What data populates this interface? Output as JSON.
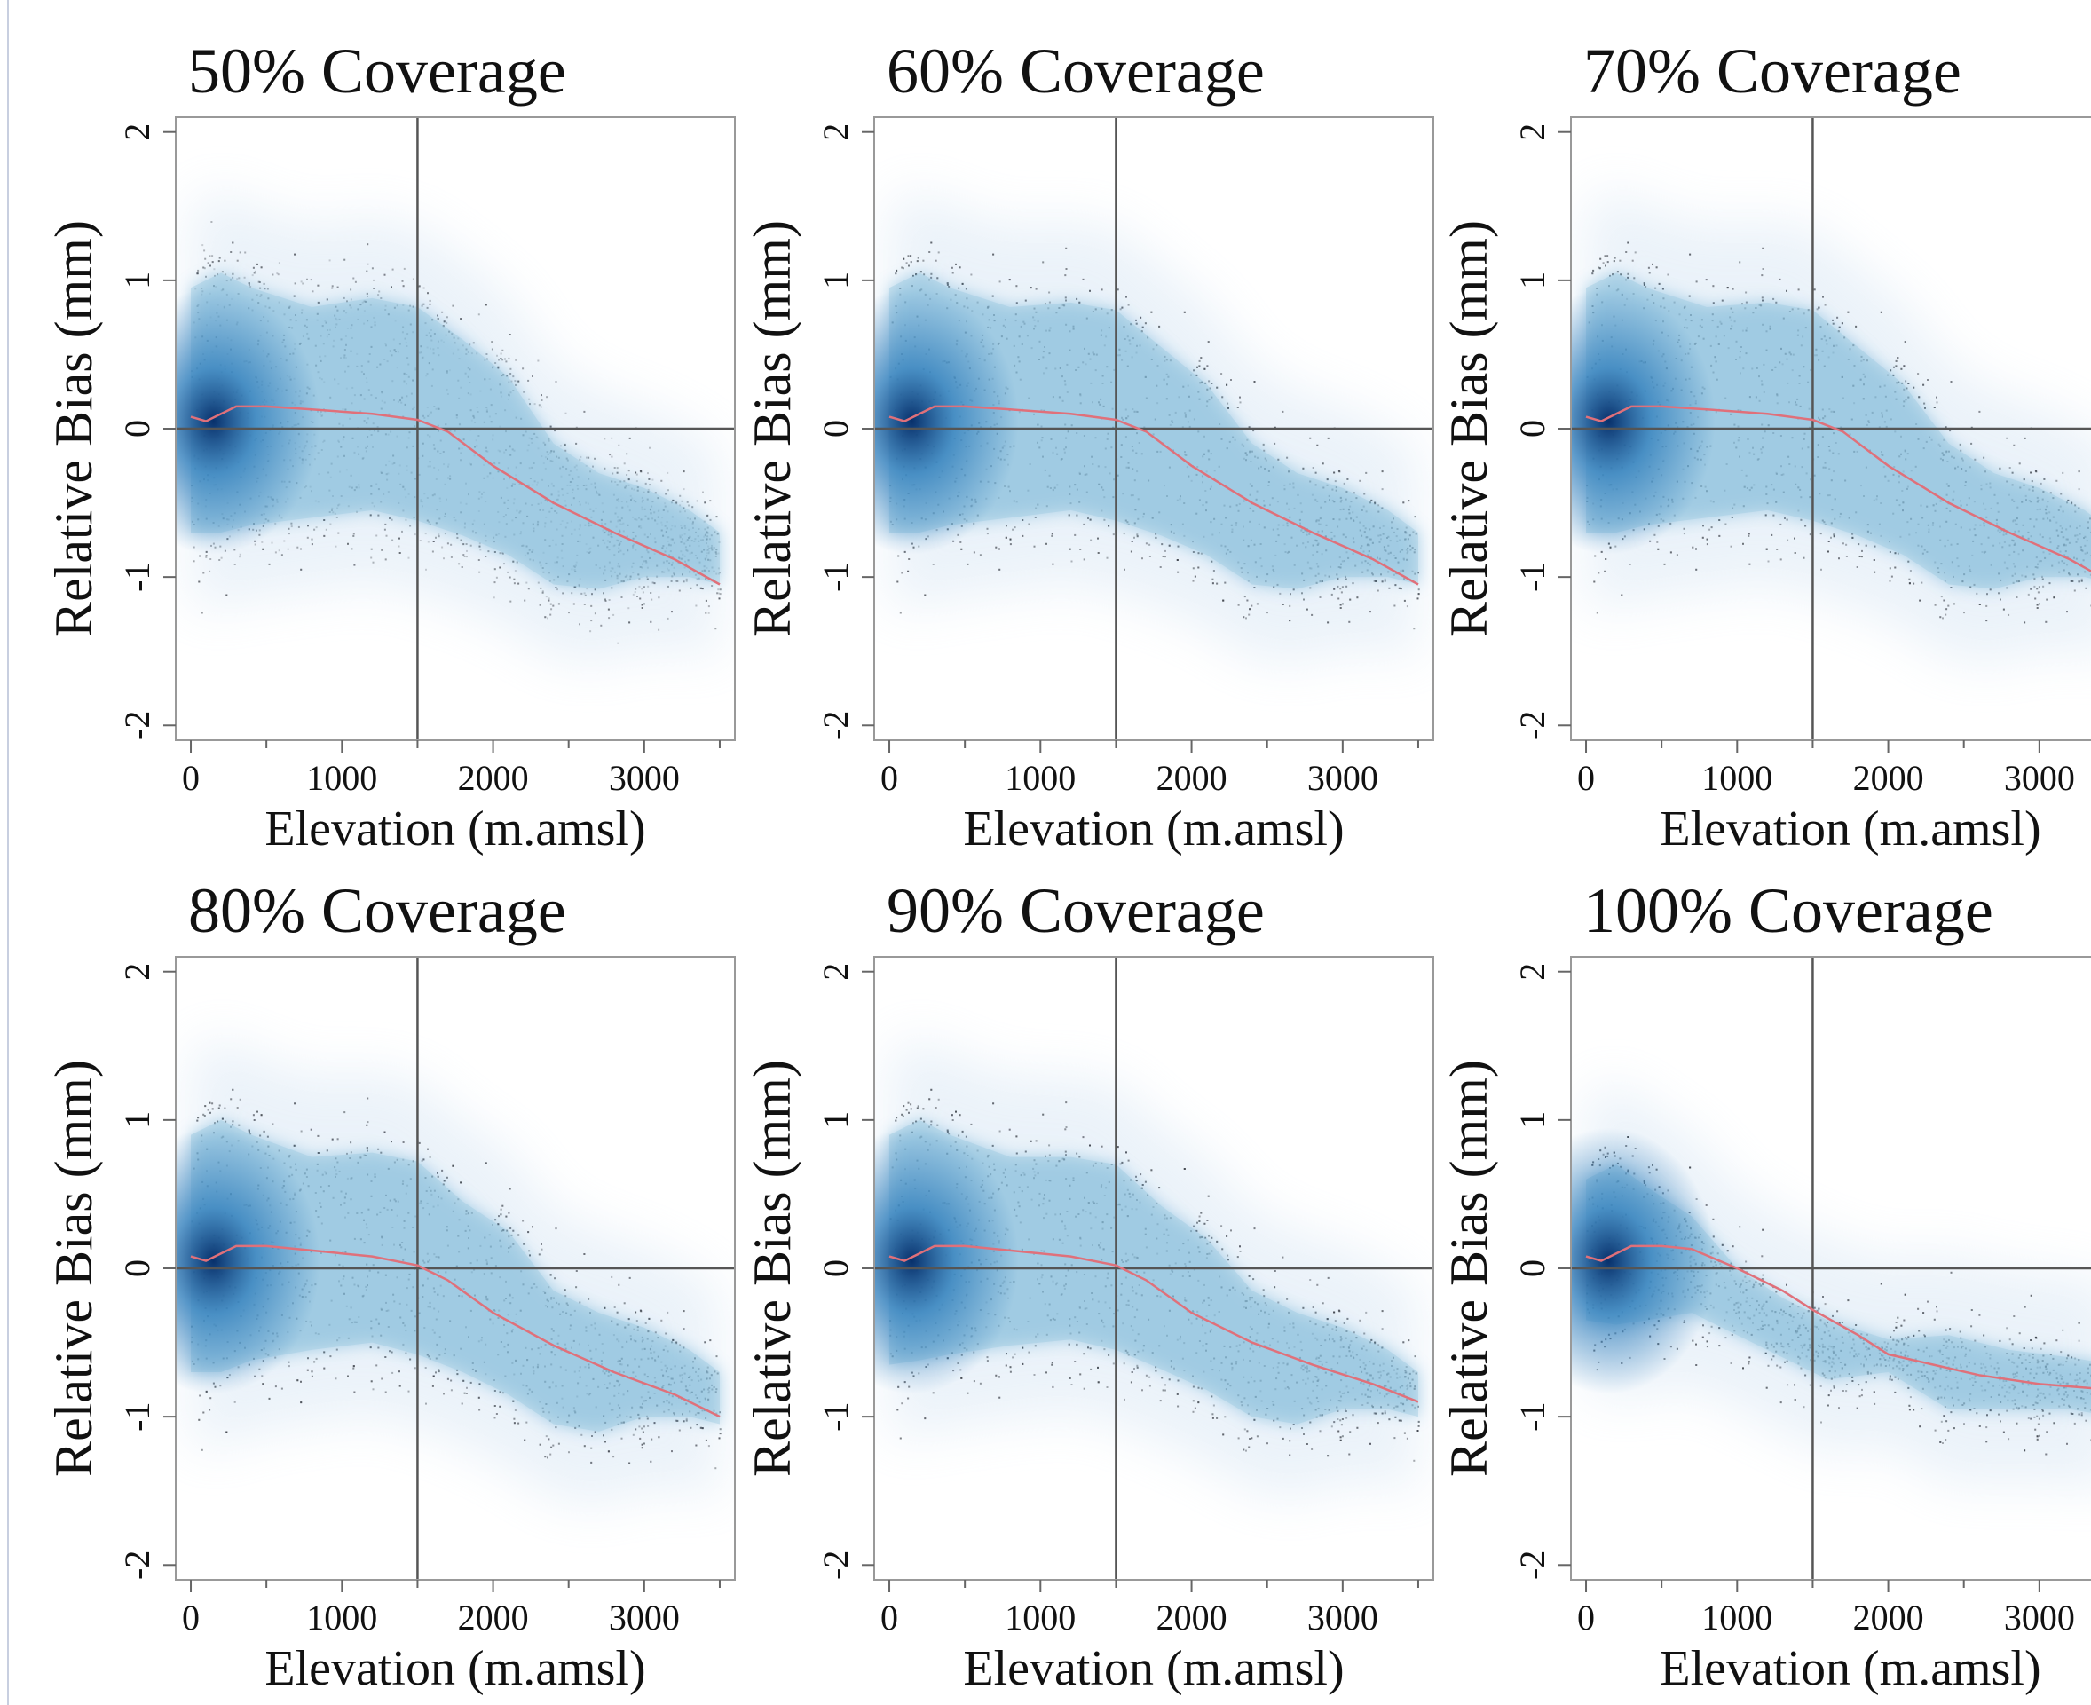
{
  "colors": {
    "density_dark": "#08306b",
    "density_mid": "#2b7bba",
    "density_light": "#c6dbef",
    "points": "#2a2f38",
    "trend": "#e0707a",
    "reference_lines": "#555555",
    "frame": "#999999"
  },
  "chart_data": [
    {
      "type": "scatter",
      "title": "50% Coverage",
      "xlabel": "Elevation (m.amsl)",
      "ylabel": "Relative Bias (mm)",
      "xlim": [
        -100,
        3600
      ],
      "ylim": [
        -2.1,
        2.1
      ],
      "xticks": [
        0,
        1000,
        2000,
        3000
      ],
      "yticks": [
        -2,
        -1,
        0,
        1,
        2
      ],
      "reference_lines": {
        "x": 1500,
        "y": 0
      },
      "trend": {
        "x": [
          0,
          100,
          200,
          300,
          500,
          800,
          1200,
          1500,
          1700,
          2000,
          2400,
          2800,
          3200,
          3500
        ],
        "y": [
          0.08,
          0.05,
          0.1,
          0.15,
          0.15,
          0.13,
          0.1,
          0.06,
          -0.02,
          -0.25,
          -0.5,
          -0.7,
          -0.88,
          -1.05
        ]
      },
      "upper_envelope": {
        "x": [
          0,
          200,
          400,
          800,
          1200,
          1500,
          1800,
          2100,
          2400,
          2700,
          3000,
          3300,
          3500
        ],
        "y": [
          0.95,
          1.05,
          0.95,
          0.82,
          0.88,
          0.82,
          0.6,
          0.35,
          -0.1,
          -0.3,
          -0.4,
          -0.55,
          -0.7
        ]
      },
      "lower_envelope": {
        "x": [
          0,
          200,
          400,
          800,
          1200,
          1500,
          1800,
          2100,
          2400,
          2700,
          3000,
          3300,
          3500
        ],
        "y": [
          -0.7,
          -0.7,
          -0.65,
          -0.6,
          -0.55,
          -0.62,
          -0.72,
          -0.85,
          -1.05,
          -1.08,
          -1.0,
          -1.0,
          -1.05
        ]
      },
      "density_peak": {
        "x": 150,
        "y": 0.05
      }
    },
    {
      "type": "scatter",
      "title": "60% Coverage",
      "xlabel": "Elevation (m.amsl)",
      "ylabel": "Relative Bias (mm)",
      "xlim": [
        -100,
        3600
      ],
      "ylim": [
        -2.1,
        2.1
      ],
      "xticks": [
        0,
        1000,
        2000,
        3000
      ],
      "yticks": [
        -2,
        -1,
        0,
        1,
        2
      ],
      "reference_lines": {
        "x": 1500,
        "y": 0
      },
      "trend": {
        "x": [
          0,
          100,
          200,
          300,
          500,
          800,
          1200,
          1500,
          1700,
          2000,
          2400,
          2800,
          3200,
          3500
        ],
        "y": [
          0.08,
          0.05,
          0.1,
          0.15,
          0.15,
          0.13,
          0.1,
          0.06,
          -0.02,
          -0.25,
          -0.5,
          -0.7,
          -0.88,
          -1.05
        ]
      },
      "upper_envelope": {
        "x": [
          0,
          200,
          400,
          800,
          1200,
          1500,
          1800,
          2100,
          2400,
          2700,
          3000,
          3300,
          3500
        ],
        "y": [
          0.95,
          1.05,
          0.95,
          0.82,
          0.85,
          0.8,
          0.55,
          0.3,
          -0.1,
          -0.3,
          -0.4,
          -0.55,
          -0.7
        ]
      },
      "lower_envelope": {
        "x": [
          0,
          200,
          400,
          800,
          1200,
          1500,
          1800,
          2100,
          2400,
          2700,
          3000,
          3300,
          3500
        ],
        "y": [
          -0.7,
          -0.7,
          -0.65,
          -0.6,
          -0.55,
          -0.62,
          -0.72,
          -0.85,
          -1.05,
          -1.08,
          -1.0,
          -1.0,
          -1.05
        ]
      },
      "density_peak": {
        "x": 150,
        "y": 0.05
      }
    },
    {
      "type": "scatter",
      "title": "70% Coverage",
      "xlabel": "Elevation (m.amsl)",
      "ylabel": "Relative Bias (mm)",
      "xlim": [
        -100,
        3600
      ],
      "ylim": [
        -2.1,
        2.1
      ],
      "xticks": [
        0,
        1000,
        2000,
        3000
      ],
      "yticks": [
        -2,
        -1,
        0,
        1,
        2
      ],
      "reference_lines": {
        "x": 1500,
        "y": 0
      },
      "trend": {
        "x": [
          0,
          100,
          200,
          300,
          500,
          800,
          1200,
          1500,
          1700,
          2000,
          2400,
          2800,
          3200,
          3500
        ],
        "y": [
          0.08,
          0.05,
          0.1,
          0.15,
          0.15,
          0.13,
          0.1,
          0.06,
          -0.02,
          -0.25,
          -0.5,
          -0.7,
          -0.88,
          -1.05
        ]
      },
      "upper_envelope": {
        "x": [
          0,
          200,
          400,
          800,
          1200,
          1500,
          1800,
          2100,
          2400,
          2700,
          3000,
          3300,
          3500
        ],
        "y": [
          0.95,
          1.05,
          0.95,
          0.82,
          0.85,
          0.8,
          0.55,
          0.3,
          -0.1,
          -0.3,
          -0.4,
          -0.55,
          -0.7
        ]
      },
      "lower_envelope": {
        "x": [
          0,
          200,
          400,
          800,
          1200,
          1500,
          1800,
          2100,
          2400,
          2700,
          3000,
          3300,
          3500
        ],
        "y": [
          -0.7,
          -0.7,
          -0.65,
          -0.6,
          -0.55,
          -0.62,
          -0.72,
          -0.85,
          -1.05,
          -1.08,
          -1.0,
          -1.0,
          -1.05
        ]
      },
      "density_peak": {
        "x": 150,
        "y": 0.05
      }
    },
    {
      "type": "scatter",
      "title": "80% Coverage",
      "xlabel": "Elevation (m.amsl)",
      "ylabel": "Relative Bias (mm)",
      "xlim": [
        -100,
        3600
      ],
      "ylim": [
        -2.1,
        2.1
      ],
      "xticks": [
        0,
        1000,
        2000,
        3000
      ],
      "yticks": [
        -2,
        -1,
        0,
        1,
        2
      ],
      "reference_lines": {
        "x": 1500,
        "y": 0
      },
      "trend": {
        "x": [
          0,
          100,
          200,
          300,
          500,
          800,
          1200,
          1500,
          1700,
          2000,
          2400,
          2800,
          3200,
          3500
        ],
        "y": [
          0.08,
          0.05,
          0.1,
          0.15,
          0.15,
          0.12,
          0.08,
          0.02,
          -0.08,
          -0.3,
          -0.52,
          -0.7,
          -0.85,
          -1.0
        ]
      },
      "upper_envelope": {
        "x": [
          0,
          200,
          400,
          800,
          1200,
          1500,
          1800,
          2100,
          2400,
          2700,
          3000,
          3300,
          3500
        ],
        "y": [
          0.9,
          1.0,
          0.9,
          0.75,
          0.78,
          0.72,
          0.45,
          0.25,
          -0.15,
          -0.3,
          -0.4,
          -0.55,
          -0.7
        ]
      },
      "lower_envelope": {
        "x": [
          0,
          200,
          400,
          800,
          1200,
          1500,
          1800,
          2100,
          2400,
          2700,
          3000,
          3300,
          3500
        ],
        "y": [
          -0.7,
          -0.7,
          -0.62,
          -0.55,
          -0.5,
          -0.58,
          -0.7,
          -0.85,
          -1.05,
          -1.1,
          -1.0,
          -1.0,
          -1.05
        ]
      },
      "density_peak": {
        "x": 150,
        "y": 0.05
      }
    },
    {
      "type": "scatter",
      "title": "90% Coverage",
      "xlabel": "Elevation (m.amsl)",
      "ylabel": "Relative Bias (mm)",
      "xlim": [
        -100,
        3600
      ],
      "ylim": [
        -2.1,
        2.1
      ],
      "xticks": [
        0,
        1000,
        2000,
        3000
      ],
      "yticks": [
        -2,
        -1,
        0,
        1,
        2
      ],
      "reference_lines": {
        "x": 1500,
        "y": 0
      },
      "trend": {
        "x": [
          0,
          100,
          200,
          300,
          500,
          800,
          1200,
          1500,
          1700,
          2000,
          2400,
          2800,
          3200,
          3500
        ],
        "y": [
          0.08,
          0.05,
          0.1,
          0.15,
          0.15,
          0.12,
          0.08,
          0.02,
          -0.08,
          -0.3,
          -0.5,
          -0.65,
          -0.78,
          -0.9
        ]
      },
      "upper_envelope": {
        "x": [
          0,
          200,
          400,
          800,
          1200,
          1500,
          1800,
          2100,
          2400,
          2700,
          3000,
          3300,
          3500
        ],
        "y": [
          0.9,
          1.0,
          0.9,
          0.75,
          0.75,
          0.7,
          0.42,
          0.2,
          -0.15,
          -0.3,
          -0.4,
          -0.55,
          -0.7
        ]
      },
      "lower_envelope": {
        "x": [
          0,
          200,
          400,
          800,
          1200,
          1500,
          1800,
          2100,
          2400,
          2700,
          3000,
          3300,
          3500
        ],
        "y": [
          -0.65,
          -0.62,
          -0.58,
          -0.52,
          -0.48,
          -0.55,
          -0.68,
          -0.82,
          -1.0,
          -1.05,
          -0.95,
          -0.95,
          -1.0
        ]
      },
      "density_peak": {
        "x": 150,
        "y": 0.05
      }
    },
    {
      "type": "scatter",
      "title": "100% Coverage",
      "xlabel": "Elevation (m.amsl)",
      "ylabel": "Relative Bias (mm)",
      "xlim": [
        -100,
        3600
      ],
      "ylim": [
        -2.1,
        2.1
      ],
      "xticks": [
        0,
        1000,
        2000,
        3000
      ],
      "yticks": [
        -2,
        -1,
        0,
        1,
        2
      ],
      "reference_lines": {
        "x": 1500,
        "y": 0
      },
      "trend": {
        "x": [
          0,
          100,
          200,
          300,
          500,
          700,
          1000,
          1300,
          1500,
          1800,
          2000,
          2300,
          2600,
          3000,
          3500
        ],
        "y": [
          0.08,
          0.05,
          0.1,
          0.15,
          0.15,
          0.13,
          0.0,
          -0.15,
          -0.28,
          -0.45,
          -0.58,
          -0.65,
          -0.72,
          -0.78,
          -0.82
        ]
      },
      "upper_envelope": {
        "x": [
          0,
          200,
          400,
          700,
          1000,
          1300,
          1600,
          2000,
          2400,
          2800,
          3200,
          3500
        ],
        "y": [
          0.6,
          0.7,
          0.55,
          0.35,
          0.0,
          -0.2,
          -0.35,
          -0.48,
          -0.45,
          -0.55,
          -0.6,
          -0.65
        ]
      },
      "lower_envelope": {
        "x": [
          0,
          200,
          400,
          700,
          1000,
          1300,
          1600,
          2000,
          2400,
          2800,
          3200,
          3500
        ],
        "y": [
          -0.35,
          -0.38,
          -0.35,
          -0.3,
          -0.45,
          -0.6,
          -0.75,
          -0.7,
          -0.95,
          -0.95,
          -0.95,
          -1.0
        ]
      },
      "density_peak": {
        "x": 150,
        "y": 0.05
      }
    }
  ]
}
